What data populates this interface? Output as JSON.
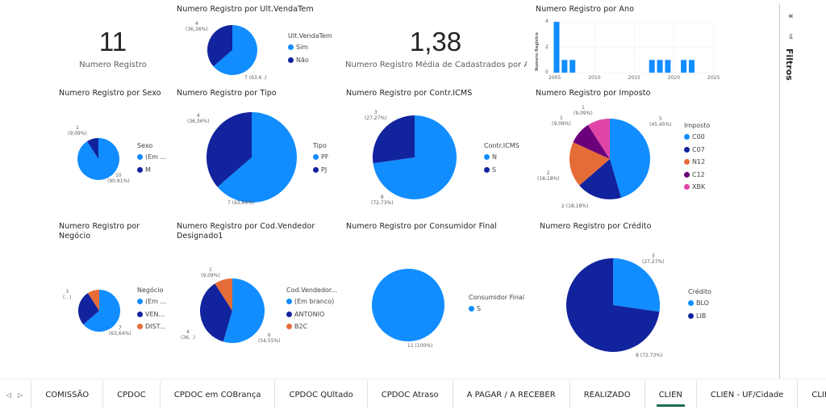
{
  "colors": {
    "light": "#118DFF",
    "dark": "#12239E",
    "orange": "#E66C37",
    "purple": "#6B007B",
    "pink": "#E044A7"
  },
  "kpis": [
    {
      "value": "11",
      "label": "Numero Registro"
    },
    {
      "value": "1,38",
      "label": "Numero Registro Média de Cadastrados por Ano"
    }
  ],
  "filters": {
    "collapse_icon": "«",
    "filter_icon": "filter-icon",
    "label": "Filtros"
  },
  "tabs": {
    "items": [
      "COMISSÃO",
      "CPDOC",
      "CPDOC em COBrança",
      "CPDOC QUltado",
      "CPDOC Atraso",
      "A PAGAR / A RECEBER",
      "REALIZADO",
      "CLIEN",
      "CLIEN - UF/Cidade",
      "CLIEN - Ú"
    ],
    "active": "CLIEN",
    "prev": "◁",
    "next": "▷"
  },
  "chart_data": [
    {
      "type": "pie",
      "title": "Numero Registro por Ult.VendaTem",
      "legend_title": "Ult.VendaTem",
      "categories": [
        "Sim",
        "Não"
      ],
      "values": [
        7,
        4
      ],
      "colors": [
        "#118DFF",
        "#12239E"
      ],
      "labels": [
        "7 (63,6 .)",
        "4\n(36,36%)"
      ]
    },
    {
      "type": "bar",
      "title": "Numero Registro por Ano",
      "ylabel": "Numero Registro",
      "xlabel": "",
      "x": [
        2005,
        2006,
        2007,
        2017,
        2018,
        2019,
        2021,
        2022
      ],
      "values": [
        4,
        1,
        1,
        1,
        1,
        1,
        1,
        1
      ],
      "xlim": [
        2005,
        2025
      ],
      "ylim": [
        0,
        4
      ],
      "xticks": [
        2005,
        2010,
        2015,
        2020,
        2025
      ],
      "yticks": [
        0,
        2,
        4
      ],
      "grid": true,
      "color": "#118DFF"
    },
    {
      "type": "pie",
      "title": "Numero Registro por Sexo",
      "legend_title": "Sexo",
      "categories": [
        "(Em ...",
        "M"
      ],
      "values": [
        10,
        1
      ],
      "colors": [
        "#118DFF",
        "#12239E"
      ],
      "labels": [
        "10\n(90,91%)",
        "1\n(9,09%)"
      ]
    },
    {
      "type": "pie",
      "title": "Numero Registro por Tipo",
      "legend_title": "Tipo",
      "categories": [
        "PF",
        "PJ"
      ],
      "values": [
        7,
        4
      ],
      "colors": [
        "#118DFF",
        "#12239E"
      ],
      "labels": [
        "7 (63,64%)",
        "4\n(36,36%)"
      ]
    },
    {
      "type": "pie",
      "title": "Numero Registro por Contr.ICMS",
      "legend_title": "Contr.ICMS",
      "categories": [
        "N",
        "S"
      ],
      "values": [
        8,
        3
      ],
      "colors": [
        "#118DFF",
        "#12239E"
      ],
      "labels": [
        "8\n(72,73%)",
        "3\n(27,27%)"
      ]
    },
    {
      "type": "pie",
      "title": "Numero Registro por Imposto",
      "legend_title": "Imposto",
      "categories": [
        "C00",
        "C07",
        "N12",
        "C12",
        "XBK"
      ],
      "values": [
        5,
        2,
        2,
        1,
        1
      ],
      "colors": [
        "#118DFF",
        "#12239E",
        "#E66C37",
        "#6B007B",
        "#E044A7"
      ],
      "labels": [
        "5\n(45,45%)",
        "2 (18,18%)",
        "2\n(18,18%)",
        "1\n(9,09%)",
        "1\n(9,09%)"
      ]
    },
    {
      "type": "pie",
      "title": "Numero Registro por Negócio",
      "legend_title": "Negócio",
      "categories": [
        "(Em ...",
        "VEN...",
        "DIST..."
      ],
      "values": [
        7,
        3,
        1
      ],
      "colors": [
        "#118DFF",
        "#12239E",
        "#E66C37"
      ],
      "labels": [
        "7\n(63,64%)",
        "3\n(. .)",
        ""
      ]
    },
    {
      "type": "pie",
      "title": "Numero Registro por Cod.Vendedor Designado1",
      "legend_title": "Cod.Vendedor...",
      "categories": [
        "(Em branco)",
        "ANTONIO",
        "B2C"
      ],
      "values": [
        6,
        4,
        1
      ],
      "colors": [
        "#118DFF",
        "#12239E",
        "#E66C37"
      ],
      "labels": [
        "6\n(54,55%)",
        "4\n(36, .)",
        "1\n(9,09%)"
      ]
    },
    {
      "type": "pie",
      "title": "Numero Registro por Consumidor Final",
      "legend_title": "Consumidor Final",
      "categories": [
        "S"
      ],
      "values": [
        11
      ],
      "colors": [
        "#118DFF"
      ],
      "labels": [
        "11 (100%)"
      ]
    },
    {
      "type": "pie",
      "title": "Numero Registro por Crédito",
      "legend_title": "Crédito",
      "categories": [
        "BLO",
        "LIB"
      ],
      "values": [
        3,
        8
      ],
      "colors": [
        "#118DFF",
        "#12239E"
      ],
      "labels": [
        "3\n(27,27%)",
        "8 (72,73%)"
      ]
    }
  ]
}
